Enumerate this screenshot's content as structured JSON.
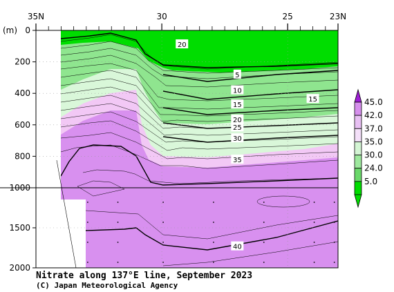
{
  "chart_data": {
    "type": "heatmap",
    "title": "Nitrate along 137°E line, September 2023",
    "credit": "(C) Japan Meteorological Agency",
    "y_unit": "(m)",
    "x_axis": {
      "ticks": [
        {
          "value": 35,
          "label": "35N"
        },
        {
          "value": 30,
          "label": "30"
        },
        {
          "value": 25,
          "label": "25"
        },
        {
          "value": 23,
          "label": "23N"
        }
      ],
      "range": [
        35,
        23
      ]
    },
    "y_axis": {
      "upper_ticks": [
        0,
        200,
        400,
        600,
        800,
        1000
      ],
      "lower_ticks": [
        1500,
        2000
      ],
      "upper_range": [
        0,
        1000
      ],
      "lower_range": [
        1000,
        2000
      ]
    },
    "colorbar": {
      "labels": [
        "45.0",
        "42.0",
        "37.0",
        "35.0",
        "30.0",
        "24.0",
        "5.0"
      ],
      "colors": [
        "#9f1fd6",
        "#d68fec",
        "#e8c0f3",
        "#f4e0f9",
        "#d4f5d4",
        "#9ee99e",
        "#6ad86a",
        "#00dd00"
      ]
    },
    "colors": {
      "green_high": "#00dd00",
      "green_mid": "#8fe58f",
      "green_light": "#d9f7d9",
      "pink_light": "#f2c8f5",
      "violet": "#df8cf0",
      "purple": "#d890ef"
    },
    "contour_labels": [
      {
        "text": "20",
        "lat": 29.2,
        "depth": 88
      },
      {
        "text": "5",
        "lat": 27.0,
        "depth": 280
      },
      {
        "text": "10",
        "lat": 27.0,
        "depth": 380
      },
      {
        "text": "15",
        "lat": 27.0,
        "depth": 470
      },
      {
        "text": "15",
        "lat": 24.0,
        "depth": 435
      },
      {
        "text": "20",
        "lat": 27.0,
        "depth": 565
      },
      {
        "text": "25",
        "lat": 27.0,
        "depth": 615
      },
      {
        "text": "30",
        "lat": 27.0,
        "depth": 685
      },
      {
        "text": "35",
        "lat": 27.0,
        "depth": 820
      },
      {
        "text": "40",
        "lat": 27.0,
        "depth": 1730
      }
    ]
  }
}
